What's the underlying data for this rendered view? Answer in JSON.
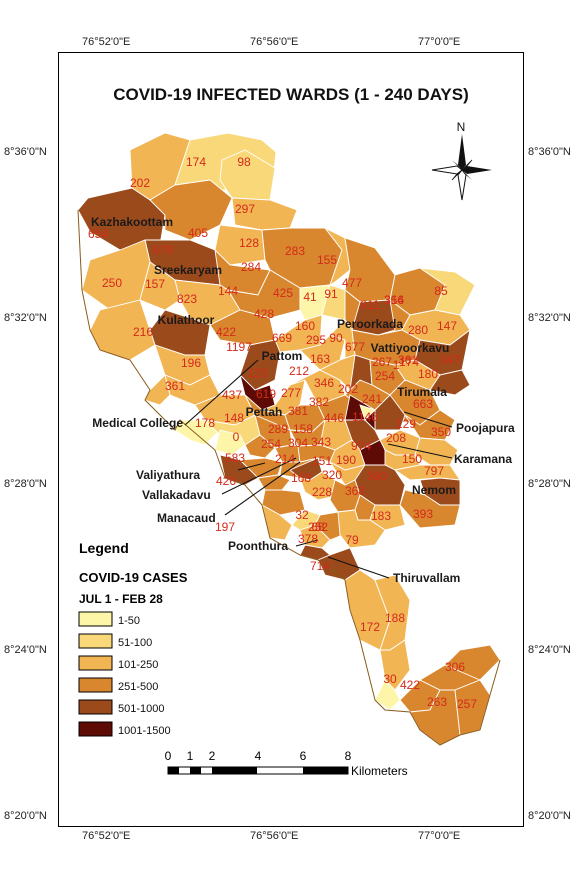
{
  "map": {
    "title": "COVID-19 INFECTED WARDS (1 - 240 DAYS)",
    "north_label": "N",
    "coords": {
      "top": [
        "76°52'0\"E",
        "76°56'0\"E",
        "77°0'0\"E"
      ],
      "bottom": [
        "76°52'0\"E",
        "76°56'0\"E",
        "77°0'0\"E"
      ],
      "left": [
        "8°36'0\"N",
        "8°32'0\"N",
        "8°28'0\"N",
        "8°24'0\"N",
        "8°20'0\"N"
      ],
      "right": [
        "8°36'0\"N",
        "8°32'0\"N",
        "8°28'0\"N",
        "8°24'0\"N",
        "8°20'0\"N"
      ]
    },
    "place_labels": [
      "Kazhakoottam",
      "Sreekaryam",
      "Kulathoor",
      "Pattom",
      "Peroorkada",
      "Vattiyoorkavu",
      "Pettah",
      "Tirumala",
      "Poojapura",
      "Karamana",
      "Nemom",
      "Medical College",
      "Valiyathura",
      "Vallakadavu",
      "Manacaud",
      "Poonthura",
      "Thiruvallam"
    ],
    "ward_values": [
      "174",
      "98",
      "202",
      "297",
      "654",
      "405",
      "128",
      "283",
      "679",
      "284",
      "155",
      "250",
      "157",
      "144",
      "425",
      "41",
      "91",
      "477",
      "366",
      "85",
      "823",
      "428",
      "314",
      "811",
      "147",
      "216",
      "422",
      "160",
      "669",
      "295",
      "90",
      "280",
      "1197",
      "677",
      "347",
      "196",
      "123",
      "212",
      "163",
      "267",
      "361",
      "174",
      "180",
      "361",
      "437",
      "619",
      "277",
      "346",
      "202",
      "254",
      "663",
      "241",
      "178",
      "148",
      "381",
      "382",
      "446",
      "1146",
      "1",
      "129",
      "0",
      "289",
      "158",
      "350",
      "254",
      "304",
      "343",
      "974",
      "208",
      "150",
      "583",
      "214",
      "151",
      "190",
      "797",
      "426",
      "168",
      "320",
      "580",
      "228",
      "368",
      "197",
      "32",
      "252",
      "183",
      "393",
      "68",
      "79",
      "378",
      "714",
      "172",
      "188",
      "306",
      "30",
      "422",
      "263",
      "257"
    ],
    "scale": {
      "ticks": [
        "0",
        "1",
        "2",
        "4",
        "6",
        "8"
      ],
      "unit": "Kilometers"
    },
    "legend": {
      "title": "Legend",
      "subtitle": "COVID-19 CASES",
      "period": "JUL 1 - FEB 28",
      "classes": [
        {
          "label": "1-50",
          "color": "#fdf5a8"
        },
        {
          "label": "51-100",
          "color": "#f9d87a"
        },
        {
          "label": "101-250",
          "color": "#f2b554"
        },
        {
          "label": "251-500",
          "color": "#d9872e"
        },
        {
          "label": "501-1000",
          "color": "#9b4a1c"
        },
        {
          "label": "1001-1500",
          "color": "#5e0b05"
        }
      ]
    }
  }
}
